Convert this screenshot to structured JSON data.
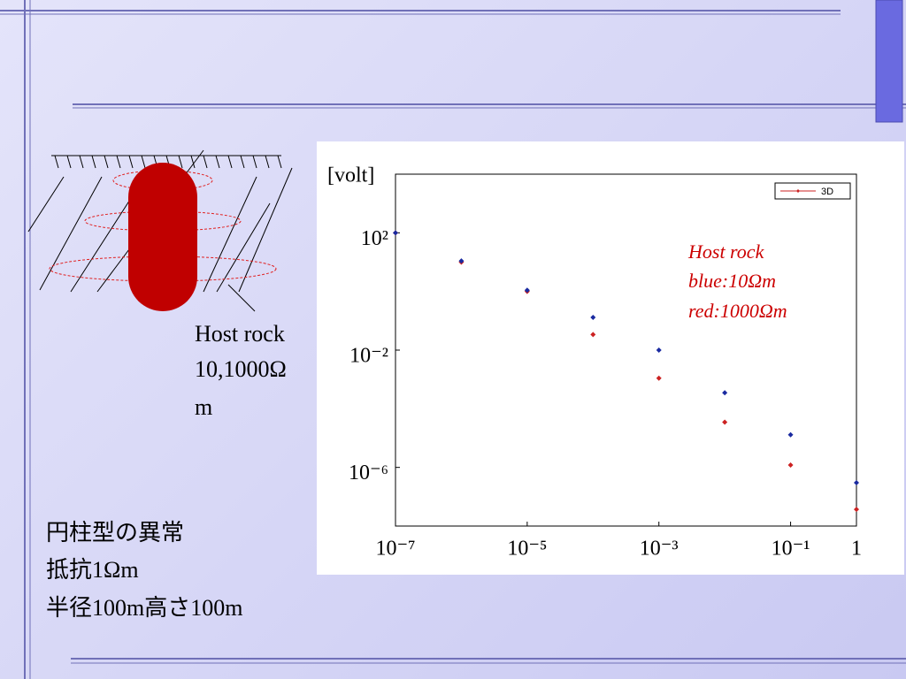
{
  "left_note": {
    "lines": [
      "Host rock",
      "10,1000Ω",
      "m"
    ]
  },
  "caption": {
    "lines": [
      "円柱型の異常",
      "抵抗1Ωm",
      "半径100m高さ100m"
    ]
  },
  "chart_data": {
    "type": "scatter",
    "y_label": "[volt]",
    "log_x": true,
    "log_y": true,
    "annotation": [
      "Host rock",
      "blue:10Ωm",
      "red:1000Ωm"
    ],
    "legend": "upper right",
    "xlim": [
      1e-07,
      1
    ],
    "ylim": [
      1e-08,
      10000
    ],
    "xticks": [
      {
        "value": 1e-07,
        "label": "10⁻⁷"
      },
      {
        "value": 1e-05,
        "label": "10⁻⁵"
      },
      {
        "value": 0.001,
        "label": "10⁻³"
      },
      {
        "value": 0.1,
        "label": "10⁻¹"
      },
      1
    ],
    "yticks": [
      {
        "value": 100,
        "label": "10²"
      },
      {
        "value": 0.01,
        "label": "10⁻²"
      },
      {
        "value": 1e-06,
        "label": "10⁻⁶"
      }
    ],
    "x": [
      1e-07,
      1e-06,
      1e-05,
      0.0001,
      0.001,
      0.01,
      0.1,
      1
    ],
    "series": [
      {
        "name": "3D",
        "color": "#cc2222",
        "values": [
          100,
          10,
          1,
          0.034,
          0.0011,
          3.5e-05,
          1.2e-06,
          3.7e-08
        ]
      },
      {
        "color": "#1a2aa0",
        "values": [
          100,
          11,
          1.1,
          0.13,
          0.01,
          0.00035,
          1.3e-05,
          3e-07
        ]
      }
    ]
  }
}
